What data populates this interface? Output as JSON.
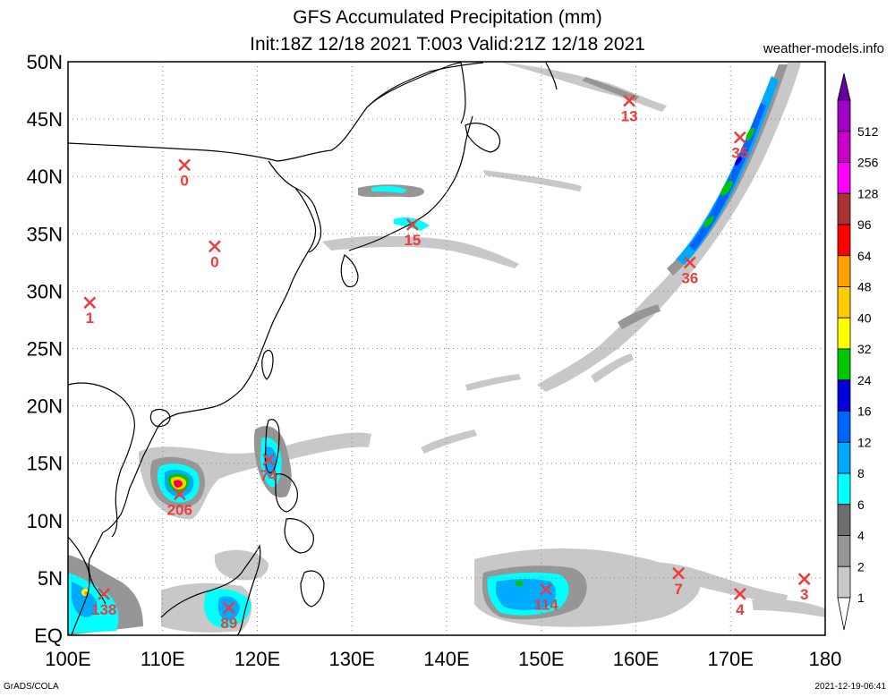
{
  "header": {
    "title": "GFS Accumulated Precipitation (mm)",
    "subtitle": "Init:18Z 12/18 2021 T:003 Valid:21Z 12/18 2021",
    "site": "weather-models.info"
  },
  "footer": {
    "left": "GrADS/COLA",
    "right": "2021-12-19-06:41"
  },
  "axes": {
    "lat_labels": [
      "50N",
      "45N",
      "40N",
      "35N",
      "30N",
      "25N",
      "20N",
      "15N",
      "10N",
      "5N",
      "EQ"
    ],
    "lon_labels": [
      "100E",
      "110E",
      "120E",
      "130E",
      "140E",
      "150E",
      "160E",
      "170E",
      "180"
    ]
  },
  "legend": {
    "levels": [
      "1",
      "2",
      "4",
      "6",
      "8",
      "12",
      "16",
      "24",
      "32",
      "40",
      "48",
      "64",
      "96",
      "128",
      "256",
      "512"
    ],
    "colors": [
      "#ffffff",
      "#c8c8c8",
      "#969696",
      "#6e6e6e",
      "#00ffff",
      "#00aaff",
      "#0064ff",
      "#0000dc",
      "#00c800",
      "#ffff00",
      "#ffcc00",
      "#ffa000",
      "#ff0000",
      "#aa3232",
      "#ff00ff",
      "#c800c8",
      "#a000c8",
      "#6400a0"
    ]
  },
  "stations": [
    {
      "lon": 102.3,
      "lat": 29.0,
      "value": "1"
    },
    {
      "lon": 112.3,
      "lat": 41.0,
      "value": "0"
    },
    {
      "lon": 115.5,
      "lat": 33.9,
      "value": "0"
    },
    {
      "lon": 136.4,
      "lat": 35.8,
      "value": "15"
    },
    {
      "lon": 159.3,
      "lat": 46.6,
      "value": "13"
    },
    {
      "lon": 171.0,
      "lat": 43.4,
      "value": "35"
    },
    {
      "lon": 165.7,
      "lat": 32.5,
      "value": "36"
    },
    {
      "lon": 111.8,
      "lat": 12.3,
      "value": "206"
    },
    {
      "lon": 121.2,
      "lat": 15.3,
      "value": "74"
    },
    {
      "lon": 103.8,
      "lat": 3.6,
      "value": "138"
    },
    {
      "lon": 117.0,
      "lat": 2.4,
      "value": "89"
    },
    {
      "lon": 150.5,
      "lat": 4.0,
      "value": "114"
    },
    {
      "lon": 164.5,
      "lat": 5.4,
      "value": "7"
    },
    {
      "lon": 171.0,
      "lat": 3.6,
      "value": "4"
    },
    {
      "lon": 177.8,
      "lat": 4.9,
      "value": "3"
    }
  ]
}
